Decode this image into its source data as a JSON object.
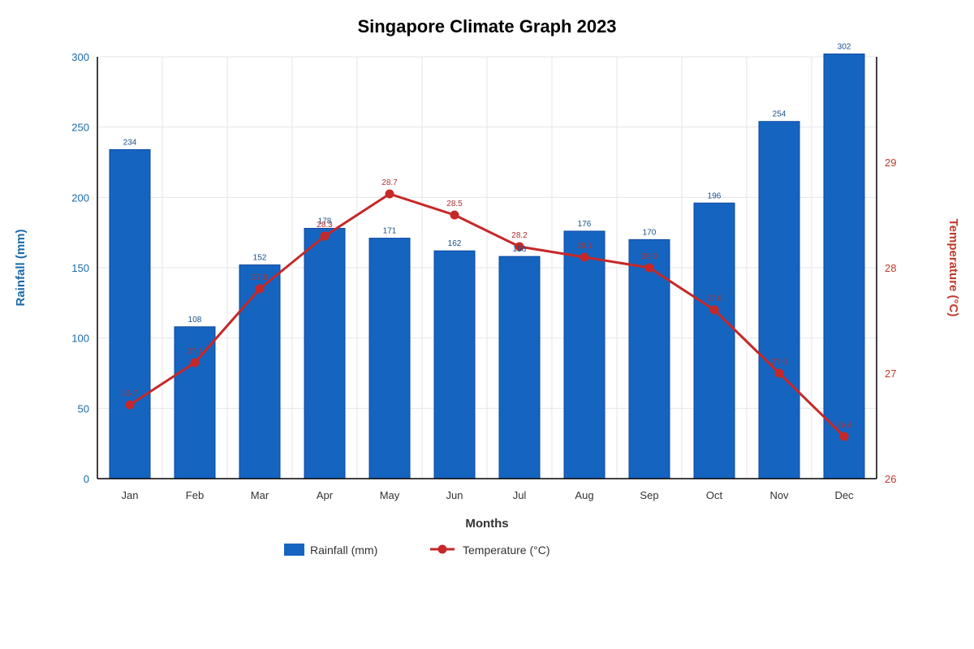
{
  "chart_data": {
    "type": "bar",
    "title": "Singapore Climate Graph 2023",
    "xlabel": "Months",
    "categories": [
      "Jan",
      "Feb",
      "Mar",
      "Apr",
      "May",
      "Jun",
      "Jul",
      "Aug",
      "Sep",
      "Oct",
      "Nov",
      "Dec"
    ],
    "series": [
      {
        "name": "Rainfall (mm)",
        "type": "bar",
        "axis": "left",
        "color": "#1565c0",
        "label_color": "#1a4f8b",
        "values": [
          234,
          108,
          152,
          178,
          171,
          162,
          158,
          176,
          170,
          196,
          254,
          302
        ],
        "labels": [
          "234",
          "108",
          "152",
          "178",
          "171",
          "162",
          "158",
          "176",
          "170",
          "196",
          "254",
          "302"
        ]
      },
      {
        "name": "Temperature (°C)",
        "type": "line",
        "axis": "right",
        "color": "#c62828",
        "values": [
          26.7,
          27.1,
          27.8,
          28.3,
          28.7,
          28.5,
          28.2,
          28.1,
          28.0,
          27.6,
          27.0,
          26.4
        ],
        "labels": [
          "26.7",
          "27.1",
          "27.8",
          "28.3",
          "28.7",
          "28.5",
          "28.2",
          "28.1",
          "28.0",
          "27.6",
          "27.0",
          "26.4"
        ]
      }
    ],
    "y_left": {
      "label": "Rainfall (mm)",
      "range": [
        0,
        300
      ],
      "ticks": [
        0,
        50,
        100,
        150,
        200,
        250,
        300
      ],
      "tick_labels": [
        "0",
        "50",
        "100",
        "150",
        "200",
        "250",
        "300"
      ],
      "color": "#1a6aa8"
    },
    "y_right": {
      "label": "Temperature (°C)",
      "range": [
        26,
        30
      ],
      "ticks": [
        26,
        27,
        28,
        29
      ],
      "tick_labels": [
        "26",
        "27",
        "28",
        "29"
      ],
      "color": "#c0392b"
    },
    "grid": true,
    "legend": {
      "position": "bottom-center",
      "items": [
        "Rainfall (mm)",
        "Temperature (°C)"
      ]
    }
  }
}
